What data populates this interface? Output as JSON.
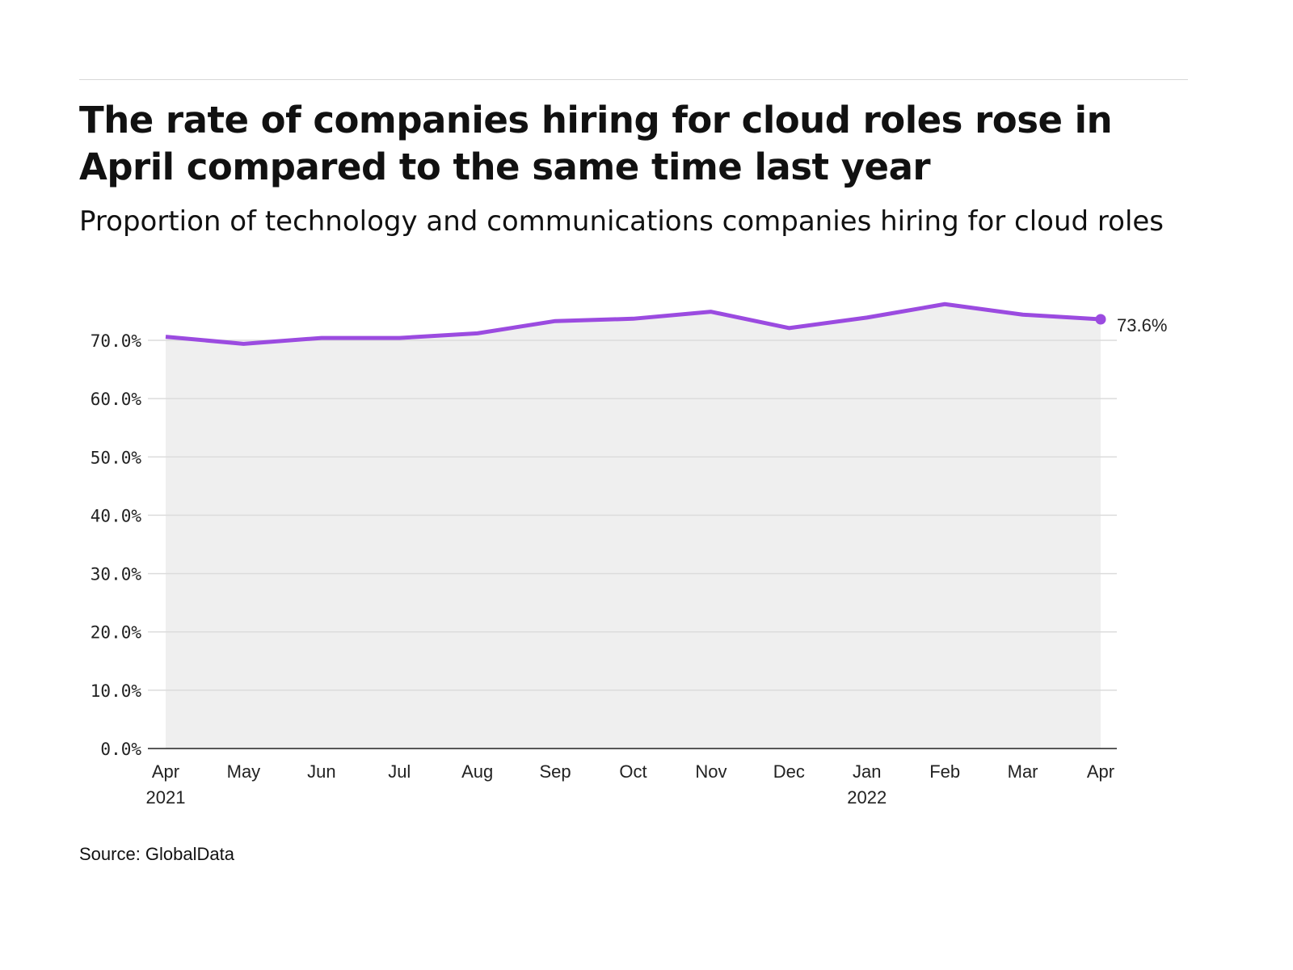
{
  "title": "The rate of companies hiring for cloud roles rose in April compared to the same time last year",
  "subtitle": "Proportion of technology and communications companies hiring for cloud roles",
  "source": "Source: GlobalData",
  "chart_data": {
    "type": "area",
    "title": "The rate of companies hiring for cloud roles rose in April compared to the same time last year",
    "subtitle": "Proportion of technology and communications companies hiring for cloud roles",
    "categories": [
      "Apr 2021",
      "May",
      "Jun",
      "Jul",
      "Aug",
      "Sep",
      "Oct",
      "Nov",
      "Dec",
      "Jan 2022",
      "Feb",
      "Mar",
      "Apr"
    ],
    "x_tick_labels": [
      [
        "Apr",
        "2021"
      ],
      [
        "May",
        ""
      ],
      [
        "Jun",
        ""
      ],
      [
        "Jul",
        ""
      ],
      [
        "Aug",
        ""
      ],
      [
        "Sep",
        ""
      ],
      [
        "Oct",
        ""
      ],
      [
        "Nov",
        ""
      ],
      [
        "Dec",
        ""
      ],
      [
        "Jan",
        "2022"
      ],
      [
        "Feb",
        ""
      ],
      [
        "Mar",
        ""
      ],
      [
        "Apr",
        ""
      ]
    ],
    "values": [
      70.6,
      69.4,
      70.4,
      70.4,
      71.2,
      73.3,
      73.7,
      74.9,
      72.1,
      73.9,
      76.2,
      74.4,
      73.6
    ],
    "end_label": "73.6%",
    "y_ticks": [
      "0.0%",
      "10.0%",
      "20.0%",
      "30.0%",
      "40.0%",
      "50.0%",
      "60.0%",
      "70.0%"
    ],
    "ylim": [
      0,
      70
    ],
    "grid": true,
    "line_color": "#9b4be0",
    "fill_color": "#efefef"
  }
}
